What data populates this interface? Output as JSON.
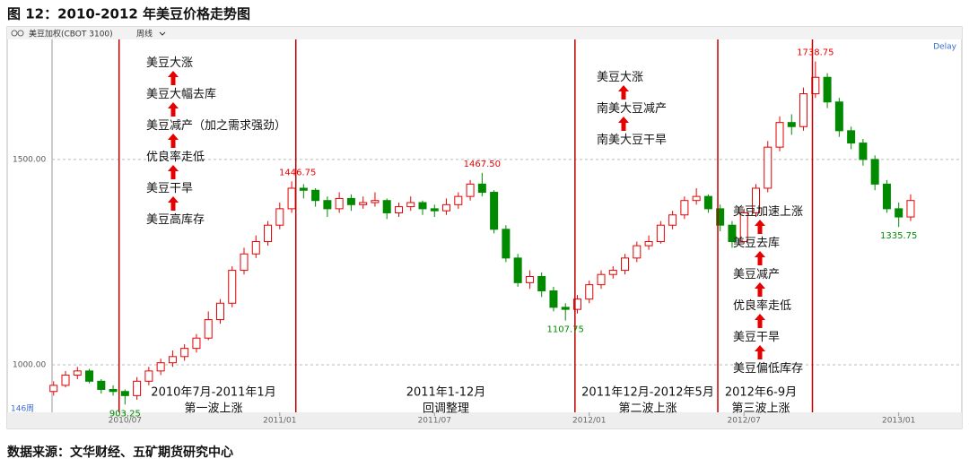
{
  "title": "图 12：2010-2012 年美豆价格走势图",
  "source": "数据来源：文华财经、五矿期货研究中心",
  "toolbar": {
    "symbol": "美豆加权(CBOT 3100)",
    "period": "周线",
    "status": "Delay",
    "count": "146周"
  },
  "chart_data": {
    "type": "candlestick",
    "x": [
      0,
      2,
      4,
      6,
      8,
      10,
      12,
      14,
      16,
      18,
      20,
      22,
      24,
      26,
      28,
      30,
      32,
      34,
      36,
      38,
      40,
      42,
      44,
      46,
      48,
      50,
      52,
      54,
      56,
      58,
      60,
      62,
      64,
      66,
      68,
      70,
      72,
      74,
      76,
      78,
      80,
      82,
      84,
      86,
      88,
      90,
      92,
      94,
      96,
      98,
      100,
      102,
      104,
      106,
      108,
      110,
      112,
      114,
      116,
      118,
      120,
      122,
      124,
      126,
      128,
      130,
      132,
      134,
      136,
      138,
      140,
      142,
      144
    ],
    "open": [
      935,
      950,
      975,
      985,
      960,
      940,
      935,
      925,
      960,
      985,
      1005,
      1020,
      1040,
      1065,
      1110,
      1150,
      1230,
      1270,
      1300,
      1340,
      1380,
      1430,
      1425,
      1400,
      1380,
      1405,
      1390,
      1395,
      1400,
      1370,
      1385,
      1395,
      1380,
      1375,
      1390,
      1410,
      1440,
      1420,
      1330,
      1260,
      1200,
      1215,
      1180,
      1140,
      1135,
      1160,
      1195,
      1220,
      1230,
      1260,
      1290,
      1300,
      1340,
      1365,
      1400,
      1410,
      1380,
      1340,
      1300,
      1370,
      1430,
      1530,
      1590,
      1580,
      1660,
      1700,
      1640,
      1570,
      1540,
      1500,
      1440,
      1380,
      1360
    ],
    "high": [
      960,
      985,
      995,
      990,
      965,
      950,
      940,
      970,
      995,
      1015,
      1035,
      1050,
      1075,
      1130,
      1160,
      1240,
      1285,
      1315,
      1350,
      1395,
      1446.75,
      1440,
      1430,
      1410,
      1420,
      1415,
      1410,
      1420,
      1405,
      1395,
      1410,
      1400,
      1390,
      1405,
      1420,
      1450,
      1467.5,
      1425,
      1340,
      1270,
      1230,
      1225,
      1190,
      1150,
      1170,
      1205,
      1230,
      1240,
      1270,
      1300,
      1315,
      1350,
      1375,
      1410,
      1430,
      1415,
      1390,
      1350,
      1380,
      1440,
      1545,
      1605,
      1610,
      1675,
      1738.75,
      1710,
      1650,
      1580,
      1550,
      1510,
      1450,
      1395,
      1415
    ],
    "low": [
      925,
      945,
      965,
      955,
      930,
      925,
      903.25,
      915,
      950,
      975,
      995,
      1010,
      1030,
      1060,
      1100,
      1140,
      1220,
      1260,
      1290,
      1330,
      1370,
      1405,
      1385,
      1360,
      1370,
      1375,
      1380,
      1385,
      1355,
      1360,
      1375,
      1365,
      1360,
      1365,
      1380,
      1400,
      1410,
      1320,
      1250,
      1190,
      1185,
      1165,
      1130,
      1107.75,
      1125,
      1150,
      1185,
      1210,
      1220,
      1250,
      1280,
      1295,
      1330,
      1355,
      1390,
      1370,
      1325,
      1285,
      1295,
      1360,
      1420,
      1520,
      1560,
      1570,
      1650,
      1625,
      1555,
      1525,
      1485,
      1425,
      1370,
      1335.75,
      1350
    ],
    "close": [
      950,
      975,
      985,
      960,
      940,
      935,
      925,
      960,
      985,
      1005,
      1020,
      1040,
      1065,
      1110,
      1150,
      1230,
      1270,
      1300,
      1340,
      1380,
      1430,
      1425,
      1400,
      1380,
      1405,
      1390,
      1395,
      1400,
      1370,
      1385,
      1395,
      1380,
      1375,
      1390,
      1410,
      1440,
      1420,
      1330,
      1260,
      1200,
      1215,
      1180,
      1140,
      1135,
      1160,
      1195,
      1220,
      1230,
      1260,
      1290,
      1300,
      1340,
      1365,
      1400,
      1410,
      1380,
      1340,
      1300,
      1370,
      1430,
      1530,
      1590,
      1580,
      1660,
      1700,
      1640,
      1570,
      1540,
      1500,
      1440,
      1380,
      1360,
      1400
    ],
    "up_color": "#e60000",
    "down_color": "#008a00",
    "xlim": [
      -7.8,
      152.6
    ],
    "xticks": [
      {
        "value": 12,
        "label": "2010/07"
      },
      {
        "value": 38,
        "label": "2011/01"
      },
      {
        "value": 64,
        "label": "2011/07"
      },
      {
        "value": 90,
        "label": "2012/01"
      },
      {
        "value": 116,
        "label": "2012/07"
      },
      {
        "value": 142,
        "label": "2013/01"
      }
    ],
    "ylim": [
      845,
      1801
    ],
    "yticks": [
      {
        "value": 1000,
        "label": "1000.00"
      },
      {
        "value": 1500,
        "label": "1500.00"
      }
    ],
    "grid": true,
    "phase_lines": [
      11,
      40.7,
      87.6,
      111.6,
      127.5
    ],
    "annotations": [
      {
        "x": 12,
        "value": 903.25,
        "label": "903.25",
        "color": "#008a00"
      },
      {
        "x": 41,
        "value": 1446.75,
        "label": "1446.75",
        "color": "#e60000"
      },
      {
        "x": 72,
        "value": 1467.5,
        "label": "1467.50",
        "color": "#e60000"
      },
      {
        "x": 86,
        "value": 1107.75,
        "label": "1107.75",
        "color": "#008a00"
      },
      {
        "x": 128,
        "value": 1738.75,
        "label": "1738.75",
        "color": "#e60000"
      },
      {
        "x": 142,
        "value": 1335.75,
        "label": "1335.75",
        "color": "#008a00"
      }
    ],
    "phases": [
      {
        "period": "2010年7月-2011年1月",
        "label": "第一波上涨",
        "notes": [
          "美豆大涨",
          "美豆大幅去库",
          "美豆减产（加之需求强劲）",
          "优良率走低",
          "美豆干旱",
          "美豆高库存"
        ]
      },
      {
        "period": "2011年1-12月",
        "label": "回调整理"
      },
      {
        "period": "2011年12月-2012年5月",
        "label": "第二波上涨",
        "notes": [
          "美豆大涨",
          "南美大豆减产",
          "南美大豆干旱"
        ]
      },
      {
        "period": "2012年6-9月",
        "label": "第三波上涨",
        "notes": [
          "美豆加速上涨",
          "美豆去库",
          "美豆减产",
          "优良率走低",
          "美豆干旱",
          "美豆偏低库存"
        ]
      }
    ]
  }
}
